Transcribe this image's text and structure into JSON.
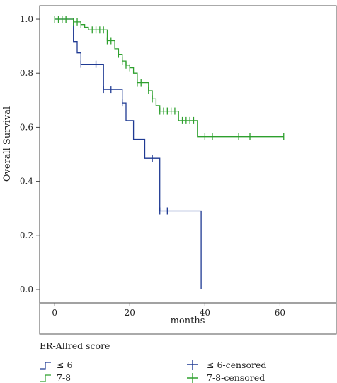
{
  "chart_data": {
    "type": "line",
    "subtype": "kaplan-meier-step",
    "xlabel": "months",
    "ylabel": "Overall Survival",
    "xlim": [
      -4,
      75
    ],
    "ylim": [
      -0.05,
      1.05
    ],
    "xticks": [
      0,
      20,
      40,
      60
    ],
    "yticks": [
      0.0,
      0.2,
      0.4,
      0.6,
      0.8,
      1.0
    ],
    "legend": {
      "title": "ER-Allred score",
      "placement": "bottom",
      "entries": [
        {
          "label": "≤ 6",
          "style": "step",
          "series": 0
        },
        {
          "label": "≤ 6-censored",
          "style": "cross",
          "series": 0
        },
        {
          "label": "7-8",
          "style": "step",
          "series": 1
        },
        {
          "label": "7-8-censored",
          "style": "cross",
          "series": 1
        }
      ]
    },
    "series": [
      {
        "color": "#1f3a93",
        "steps": [
          [
            0,
            1.0
          ],
          [
            5,
            1.0
          ],
          [
            5,
            0.917
          ],
          [
            6,
            0.917
          ],
          [
            6,
            0.875
          ],
          [
            7,
            0.875
          ],
          [
            7,
            0.833
          ],
          [
            13,
            0.833
          ],
          [
            13,
            0.74
          ],
          [
            18,
            0.74
          ],
          [
            18,
            0.69
          ],
          [
            19,
            0.69
          ],
          [
            19,
            0.625
          ],
          [
            21,
            0.625
          ],
          [
            21,
            0.555
          ],
          [
            24,
            0.555
          ],
          [
            24,
            0.485
          ],
          [
            28,
            0.485
          ],
          [
            28,
            0.29
          ],
          [
            39,
            0.29
          ],
          [
            39,
            0.0
          ]
        ],
        "censored": [
          [
            7,
            0.833
          ],
          [
            11,
            0.833
          ],
          [
            13,
            0.74
          ],
          [
            15,
            0.74
          ],
          [
            18,
            0.69
          ],
          [
            26,
            0.485
          ],
          [
            28,
            0.29
          ],
          [
            30,
            0.29
          ]
        ]
      },
      {
        "color": "#2ea02e",
        "steps": [
          [
            0,
            1.0
          ],
          [
            5,
            1.0
          ],
          [
            5,
            0.99
          ],
          [
            7,
            0.99
          ],
          [
            7,
            0.98
          ],
          [
            8,
            0.98
          ],
          [
            8,
            0.97
          ],
          [
            9,
            0.97
          ],
          [
            9,
            0.96
          ],
          [
            14,
            0.96
          ],
          [
            14,
            0.92
          ],
          [
            16,
            0.92
          ],
          [
            16,
            0.89
          ],
          [
            17,
            0.89
          ],
          [
            17,
            0.87
          ],
          [
            18,
            0.87
          ],
          [
            18,
            0.845
          ],
          [
            19,
            0.845
          ],
          [
            19,
            0.83
          ],
          [
            20,
            0.83
          ],
          [
            20,
            0.82
          ],
          [
            21,
            0.82
          ],
          [
            21,
            0.8
          ],
          [
            22,
            0.8
          ],
          [
            22,
            0.765
          ],
          [
            25,
            0.765
          ],
          [
            25,
            0.735
          ],
          [
            26,
            0.735
          ],
          [
            26,
            0.705
          ],
          [
            27,
            0.705
          ],
          [
            27,
            0.68
          ],
          [
            28,
            0.68
          ],
          [
            28,
            0.66
          ],
          [
            33,
            0.66
          ],
          [
            33,
            0.625
          ],
          [
            38,
            0.625
          ],
          [
            38,
            0.565
          ],
          [
            61,
            0.565
          ]
        ],
        "censored": [
          [
            0,
            1.0
          ],
          [
            1,
            1.0
          ],
          [
            2,
            1.0
          ],
          [
            3,
            1.0
          ],
          [
            5,
            0.99
          ],
          [
            6,
            0.99
          ],
          [
            7,
            0.98
          ],
          [
            10,
            0.96
          ],
          [
            11,
            0.96
          ],
          [
            12,
            0.96
          ],
          [
            13,
            0.96
          ],
          [
            14,
            0.92
          ],
          [
            15,
            0.92
          ],
          [
            17,
            0.87
          ],
          [
            18,
            0.845
          ],
          [
            19,
            0.83
          ],
          [
            20,
            0.82
          ],
          [
            22,
            0.765
          ],
          [
            23,
            0.765
          ],
          [
            25,
            0.735
          ],
          [
            26,
            0.705
          ],
          [
            28,
            0.66
          ],
          [
            29,
            0.66
          ],
          [
            30,
            0.66
          ],
          [
            31,
            0.66
          ],
          [
            32,
            0.66
          ],
          [
            34,
            0.625
          ],
          [
            35,
            0.625
          ],
          [
            36,
            0.625
          ],
          [
            37,
            0.625
          ],
          [
            40,
            0.565
          ],
          [
            42,
            0.565
          ],
          [
            49,
            0.565
          ],
          [
            52,
            0.565
          ],
          [
            61,
            0.565
          ]
        ]
      }
    ]
  }
}
